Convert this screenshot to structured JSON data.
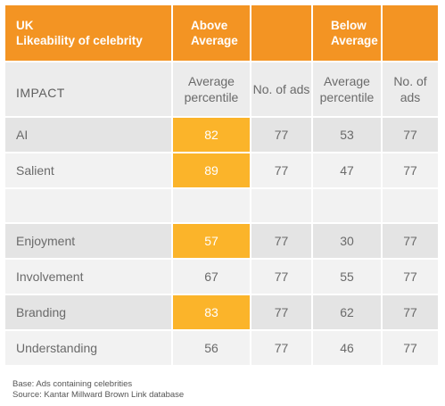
{
  "header": {
    "country": "UK",
    "subject": "Likeability of celebrity",
    "above_average": "Above Average",
    "below_average": "Below Average"
  },
  "subheader": {
    "impact": "IMPACT",
    "avg_percentile": "Average percentile",
    "no_of_ads": "No. of ads"
  },
  "rows": [
    {
      "label": "AI",
      "above_pct": "82",
      "above_ads": "77",
      "below_pct": "53",
      "below_ads": "77",
      "highlight": true
    },
    {
      "label": "Salient",
      "above_pct": "89",
      "above_ads": "77",
      "below_pct": "47",
      "below_ads": "77",
      "highlight": true
    },
    {
      "label": "Enjoyment",
      "above_pct": "57",
      "above_ads": "77",
      "below_pct": "30",
      "below_ads": "77",
      "highlight": true
    },
    {
      "label": "Involvement",
      "above_pct": "67",
      "above_ads": "77",
      "below_pct": "55",
      "below_ads": "77",
      "highlight": false
    },
    {
      "label": "Branding",
      "above_pct": "83",
      "above_ads": "77",
      "below_pct": "62",
      "below_ads": "77",
      "highlight": true
    },
    {
      "label": "Understanding",
      "above_pct": "56",
      "above_ads": "77",
      "below_pct": "46",
      "below_ads": "77",
      "highlight": false
    }
  ],
  "footer": {
    "base": "Base: Ads containing celebrities",
    "source": "Source: Kantar Millward Brown Link database"
  },
  "colors": {
    "header_orange": "#f39423",
    "highlight_yellow": "#fbb42a",
    "row_dark": "#e4e4e4",
    "row_light": "#f2f2f2"
  }
}
